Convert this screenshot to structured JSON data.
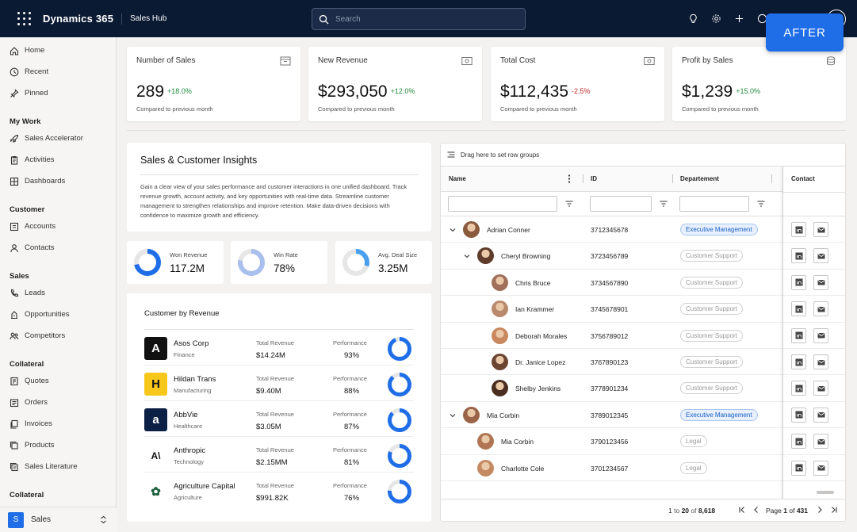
{
  "topbar": {
    "brand": "Dynamics 365",
    "app_name": "Sales Hub",
    "search_placeholder": "Search",
    "after_label": "AFTER"
  },
  "sidebar": {
    "top_items": [
      {
        "label": "Home",
        "icon": "home-icon"
      },
      {
        "label": "Recent",
        "icon": "clock-icon"
      },
      {
        "label": "Pinned",
        "icon": "pin-icon"
      }
    ],
    "sections": [
      {
        "title": "My Work",
        "items": [
          {
            "label": "Sales Accelerator",
            "icon": "rocket-icon"
          },
          {
            "label": "Activities",
            "icon": "clipboard-icon"
          },
          {
            "label": "Dashboards",
            "icon": "dashboard-icon"
          }
        ]
      },
      {
        "title": "Customer",
        "items": [
          {
            "label": "Accounts",
            "icon": "building-icon"
          },
          {
            "label": "Contacts",
            "icon": "person-icon"
          }
        ]
      },
      {
        "title": "Sales",
        "items": [
          {
            "label": "Leads",
            "icon": "phone-icon"
          },
          {
            "label": "Opportunities",
            "icon": "opportunity-icon"
          },
          {
            "label": "Competitors",
            "icon": "people-icon"
          }
        ]
      },
      {
        "title": "Collateral",
        "items": [
          {
            "label": "Quotes",
            "icon": "quote-icon"
          },
          {
            "label": "Orders",
            "icon": "order-icon"
          },
          {
            "label": "Invoices",
            "icon": "invoice-icon"
          },
          {
            "label": "Products",
            "icon": "product-icon"
          },
          {
            "label": "Sales Literature",
            "icon": "literature-icon"
          }
        ]
      },
      {
        "title": "Collateral",
        "items": []
      }
    ],
    "area_badge": "S",
    "area_label": "Sales"
  },
  "kpis": [
    {
      "title": "Number of Sales",
      "value": "289",
      "delta": "+18.0%",
      "trend": "up",
      "sub": "Compared to previous month",
      "icon": "inbox-icon"
    },
    {
      "title": "New Revenue",
      "value": "$293,050",
      "delta": "+12.0%",
      "trend": "up",
      "sub": "Compared to previous month",
      "icon": "money-icon"
    },
    {
      "title": "Total Cost",
      "value": "$112,435",
      "delta": "-2.5%",
      "trend": "down",
      "sub": "Compared to previous month",
      "icon": "money-icon"
    },
    {
      "title": "Profit by Sales",
      "value": "$1,239",
      "delta": "+15.0%",
      "trend": "up",
      "sub": "Compared to previous month",
      "icon": "coins-icon"
    }
  ],
  "insights": {
    "title": "Sales & Customer Insights",
    "body": "Gain a clear view of your sales performance and customer interactions in one unified dashboard. Track revenue growth, account activity, and key opportunities with real-time data. Streamline customer management to strengthen relationships and improve retention. Make data-driven decisions with confidence to maximize growth and efficiency."
  },
  "mini_stats": [
    {
      "label": "Won Revenue",
      "value": "117.2M",
      "fraction": 0.72,
      "color": "#1f6ee8"
    },
    {
      "label": "Win Rate",
      "value": "78%",
      "fraction": 0.78,
      "color": "#a9c0ee"
    },
    {
      "label": "Avg. Deal Size",
      "value": "3.25M",
      "fraction": 0.3,
      "color": "#4aa0ee"
    }
  ],
  "customers": {
    "title": "Customer by Revenue",
    "revenue_label": "Total Revenue",
    "performance_label": "Performance",
    "rows": [
      {
        "name": "Asos Corp",
        "industry": "Finance",
        "revenue": "$14.24M",
        "performance": "93%",
        "perf": 0.93,
        "logo": "A",
        "logo_bg": "#111111",
        "logo_fg": "#ffffff"
      },
      {
        "name": "Hildan Trans",
        "industry": "Manufacturing",
        "revenue": "$9.40M",
        "performance": "88%",
        "perf": 0.88,
        "logo": "H",
        "logo_bg": "#f7c71c",
        "logo_fg": "#111111"
      },
      {
        "name": "AbbVie",
        "industry": "Healthcare",
        "revenue": "$3.05M",
        "performance": "87%",
        "perf": 0.87,
        "logo": "a",
        "logo_bg": "#0c1f44",
        "logo_fg": "#ffffff"
      },
      {
        "name": "Anthropic",
        "industry": "Technology",
        "revenue": "$2.15MM",
        "performance": "81%",
        "perf": 0.81,
        "logo": "A\\",
        "logo_bg": "#ffffff",
        "logo_fg": "#111111"
      },
      {
        "name": "Agriculture Capital",
        "industry": "Agriculture",
        "revenue": "$991.82K",
        "performance": "76%",
        "perf": 0.76,
        "logo": "✿",
        "logo_bg": "#ffffff",
        "logo_fg": "#1d5e3b"
      }
    ]
  },
  "grid": {
    "group_hint": "Drag here to set row groups",
    "columns": {
      "name": "Name",
      "id": "ID",
      "department": "Departement",
      "contact": "Contact"
    },
    "rows": [
      {
        "name": "Adrian Conner",
        "id": "3712345678",
        "department": "Executive Management",
        "level": 0,
        "expand": "down",
        "tag": "exec",
        "avatar": "#8a5a3c"
      },
      {
        "name": "Cheryl Browning",
        "id": "3723456789",
        "department": "Customer Support",
        "level": 1,
        "expand": "down",
        "tag": "supp",
        "avatar": "#5e3b2a"
      },
      {
        "name": "Chris Bruce",
        "id": "3734567890",
        "department": "Customer Support",
        "level": 2,
        "expand": "",
        "tag": "supp",
        "avatar": "#a0705a"
      },
      {
        "name": "Ian Krammer",
        "id": "3745678901",
        "department": "Customer Support",
        "level": 2,
        "expand": "",
        "tag": "supp",
        "avatar": "#b98a6e"
      },
      {
        "name": "Deborah Morales",
        "id": "3756789012",
        "department": "Customer Support",
        "level": 2,
        "expand": "",
        "tag": "supp",
        "avatar": "#c9885e"
      },
      {
        "name": "Dr. Janice Lopez",
        "id": "3767890123",
        "department": "Customer Support",
        "level": 2,
        "expand": "",
        "tag": "supp",
        "avatar": "#6b4432"
      },
      {
        "name": "Shelby Jenkins",
        "id": "3778901234",
        "department": "Customer Support",
        "level": 2,
        "expand": "",
        "tag": "supp",
        "avatar": "#4a2e22"
      },
      {
        "name": "Mia Corbin",
        "id": "3789012345",
        "department": "Executive Management",
        "level": 0,
        "expand": "down",
        "tag": "exec",
        "avatar": "#9a6448"
      },
      {
        "name": "Mia Corbin",
        "id": "3790123456",
        "department": "Legal",
        "level": 1,
        "expand": "",
        "tag": "supp",
        "avatar": "#b07552"
      },
      {
        "name": "Charlotte Cole",
        "id": "3701234567",
        "department": "Legal",
        "level": 1,
        "expand": "",
        "tag": "supp",
        "avatar": "#c48b62"
      }
    ],
    "footer": {
      "from": "1",
      "to_word": "to",
      "to": "20",
      "of_word": "of",
      "total": "8,618",
      "page_word": "Page",
      "page": "1",
      "pages": "431"
    }
  }
}
